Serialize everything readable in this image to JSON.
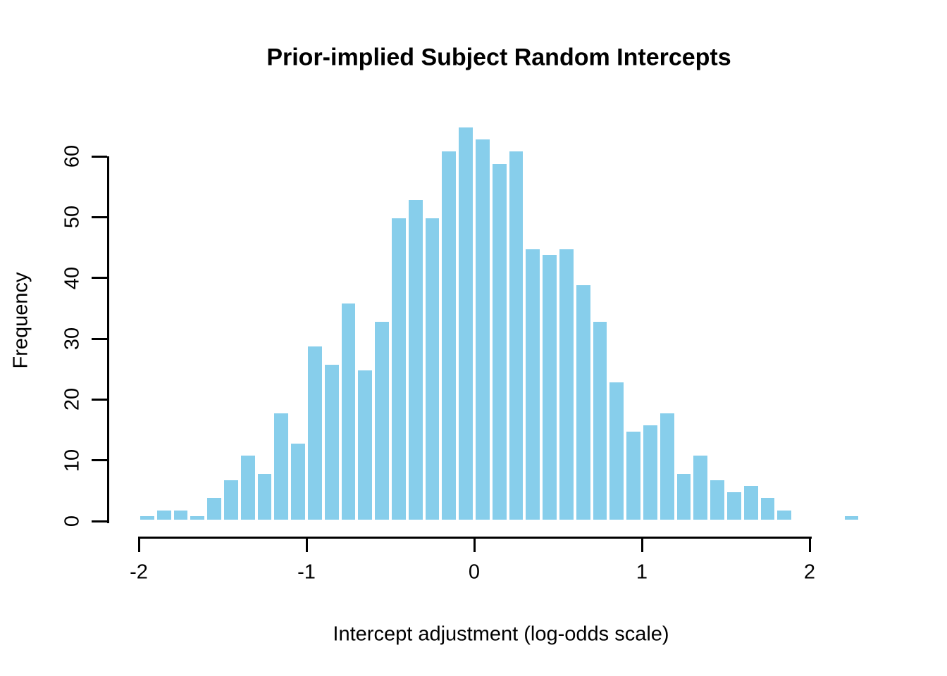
{
  "chart_data": {
    "type": "bar",
    "subtype": "histogram",
    "title": "Prior-implied Subject Random Intercepts",
    "xlabel": "Intercept adjustment (log-odds scale)",
    "ylabel": "Frequency",
    "bin_width": 0.1,
    "breaks": [
      -2.0,
      -1.9,
      -1.8,
      -1.7,
      -1.6,
      -1.5,
      -1.4,
      -1.3,
      -1.2,
      -1.1,
      -1.0,
      -0.9,
      -0.8,
      -0.7,
      -0.6,
      -0.5,
      -0.4,
      -0.3,
      -0.2,
      -0.1,
      0.0,
      0.1,
      0.2,
      0.3,
      0.4,
      0.5,
      0.6,
      0.7,
      0.8,
      0.9,
      1.0,
      1.1,
      1.2,
      1.3,
      1.4,
      1.5,
      1.6,
      1.7,
      1.8,
      1.9,
      2.0,
      2.1,
      2.2,
      2.3
    ],
    "counts": [
      1,
      2,
      2,
      1,
      4,
      7,
      11,
      8,
      18,
      13,
      29,
      26,
      36,
      25,
      33,
      50,
      53,
      50,
      61,
      65,
      63,
      59,
      61,
      45,
      44,
      45,
      39,
      33,
      23,
      15,
      16,
      18,
      8,
      11,
      7,
      5,
      6,
      4,
      2,
      0,
      0,
      0,
      1
    ],
    "x_ticks": [
      -2,
      -1,
      0,
      1,
      2
    ],
    "x_tick_labels": [
      "-2",
      "-1",
      "0",
      "1",
      "2"
    ],
    "y_ticks": [
      0,
      10,
      20,
      30,
      40,
      50,
      60
    ],
    "y_tick_labels": [
      "0",
      "10",
      "20",
      "30",
      "40",
      "50",
      "60"
    ],
    "xlim": [
      -2.0,
      2.3
    ],
    "ylim": [
      0,
      65
    ],
    "grid": false,
    "legend_position": "none",
    "bar_color": "#87CEEB",
    "bar_border_color": "#FFFFFF",
    "axis_color": "#000000",
    "text_color": "#000000",
    "background_color": "#FFFFFF"
  }
}
